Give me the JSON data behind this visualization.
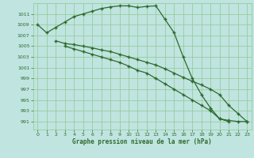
{
  "line1_x": [
    0,
    1,
    2,
    3,
    4,
    5,
    6,
    7,
    8,
    9,
    10,
    11,
    12,
    13,
    14,
    15,
    16,
    17,
    18,
    19,
    20,
    21
  ],
  "line1_y": [
    1009,
    1007.5,
    1008.5,
    1009.5,
    1010.5,
    1011,
    1011.5,
    1012,
    1012.3,
    1012.5,
    1012.5,
    1012.2,
    1012.4,
    1012.5,
    1010,
    1007.5,
    1003,
    999,
    996,
    993.5,
    991.5,
    991
  ],
  "line2_x": [
    2,
    3,
    4,
    5,
    6,
    7,
    8,
    9,
    10,
    11,
    12,
    13,
    14,
    15,
    16,
    17,
    18,
    19,
    20,
    21,
    22,
    23
  ],
  "line2_y": [
    1006,
    1005.5,
    1005.3,
    1005,
    1004.7,
    1004.3,
    1004,
    1003.5,
    1003,
    1002.5,
    1002,
    1001.5,
    1000.8,
    1000,
    999.2,
    998.5,
    997.8,
    997,
    996,
    994,
    992.5,
    991
  ],
  "line3_x": [
    3,
    4,
    5,
    6,
    7,
    8,
    9,
    10,
    11,
    12,
    13,
    14,
    15,
    16,
    17,
    18,
    19,
    20,
    21,
    22,
    23
  ],
  "line3_y": [
    1005,
    1004.5,
    1004,
    1003.5,
    1003,
    1002.5,
    1002,
    1001.3,
    1000.5,
    1000,
    999,
    998,
    997,
    996,
    995,
    994,
    993,
    991.5,
    991.2,
    991,
    991
  ],
  "line_color": "#2d6a2d",
  "bg_color": "#c0e4e0",
  "grid_color": "#90c890",
  "xlabel": "Graphe pression niveau de la mer (hPa)",
  "yticks": [
    991,
    993,
    995,
    997,
    999,
    1001,
    1003,
    1005,
    1007,
    1009,
    1011
  ],
  "xticks": [
    0,
    1,
    2,
    3,
    4,
    5,
    6,
    7,
    8,
    9,
    10,
    11,
    12,
    13,
    14,
    15,
    16,
    17,
    18,
    19,
    20,
    21,
    22,
    23
  ]
}
